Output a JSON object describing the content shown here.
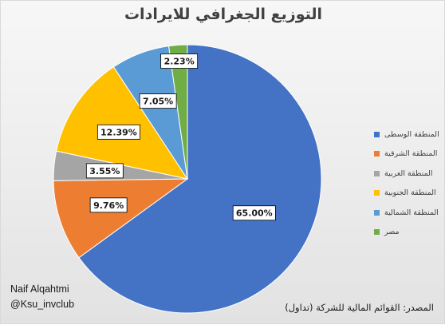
{
  "chart_data": {
    "type": "pie",
    "title": "التوزيع الجغرافي للايرادات",
    "categories": [
      "المنطقة الوسطى",
      "المنطقة الشرقية",
      "المنطقة الغربية",
      "المنطقة الجنوبية",
      "المنطقة الشمالية",
      "مصر"
    ],
    "values": [
      65.0,
      9.76,
      3.55,
      12.39,
      7.05,
      2.23
    ],
    "data_labels": [
      "65.00%",
      "9.76%",
      "3.55%",
      "12.39%",
      "7.05%",
      "2.23%"
    ],
    "colors": [
      "#4472C4",
      "#ED7D31",
      "#A5A5A5",
      "#FFC000",
      "#5B9BD5",
      "#70AD47"
    ],
    "legend": "right"
  },
  "footer": {
    "credit_name": "Naif Alqahtmi",
    "credit_handle": "@Ksu_invclub",
    "source": "المصدر: القوائم المالية للشركة (تداول)"
  }
}
